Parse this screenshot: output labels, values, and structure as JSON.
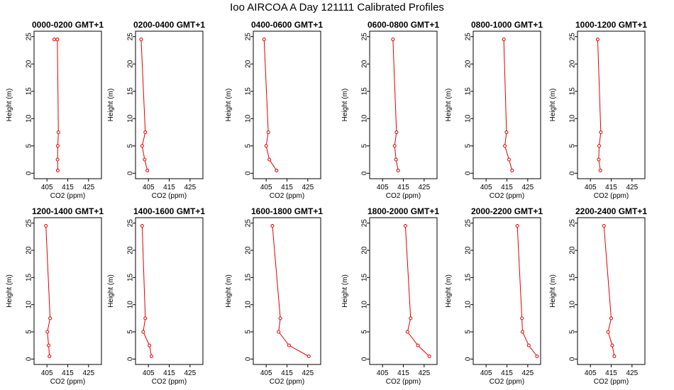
{
  "title": "Ioo AIRCOA A  Day 121111  Calibrated Profiles",
  "chart_data": [
    {
      "type": "line",
      "title": "0000-0200 GMT+1",
      "xlabel": "CO2 (ppm)",
      "ylabel": "Height (m)",
      "xlim": [
        400,
        430
      ],
      "ylim": [
        0,
        25
      ],
      "xticks": [
        405,
        415,
        425
      ],
      "yticks": [
        0,
        5,
        10,
        15,
        20,
        25
      ],
      "grid": false,
      "line_color": "#e00000",
      "series": [
        {
          "x": [
            410.2,
            410.1,
            410.2,
            410.5,
            410.0,
            408.5
          ],
          "y": [
            0.5,
            2.5,
            5,
            7.5,
            24.5,
            24.5
          ]
        }
      ]
    },
    {
      "type": "line",
      "title": "0200-0400 GMT+1",
      "xlabel": "CO2 (ppm)",
      "ylabel": "Height (m)",
      "xlim": [
        400,
        430
      ],
      "ylim": [
        0,
        25
      ],
      "xticks": [
        405,
        415,
        425
      ],
      "yticks": [
        0,
        5,
        10,
        15,
        20,
        25
      ],
      "grid": false,
      "line_color": "#e00000",
      "series": [
        {
          "x": [
            404.5,
            403.2,
            402.0,
            403.5,
            401.5
          ],
          "y": [
            0.5,
            2.5,
            5,
            7.5,
            24.5
          ]
        }
      ]
    },
    {
      "type": "line",
      "title": "0400-0600 GMT+1",
      "xlabel": "CO2 (ppm)",
      "ylabel": "Height (m)",
      "xlim": [
        400,
        430
      ],
      "ylim": [
        0,
        25
      ],
      "xticks": [
        405,
        415,
        425
      ],
      "yticks": [
        0,
        5,
        10,
        15,
        20,
        25
      ],
      "grid": false,
      "line_color": "#e00000",
      "series": [
        {
          "x": [
            410.0,
            406.5,
            405.0,
            406.0,
            404.0
          ],
          "y": [
            0.5,
            2.5,
            5,
            7.5,
            24.5
          ]
        }
      ]
    },
    {
      "type": "line",
      "title": "0600-0800 GMT+1",
      "xlabel": "CO2 (ppm)",
      "ylabel": "Height (m)",
      "xlim": [
        400,
        430
      ],
      "ylim": [
        0,
        25
      ],
      "xticks": [
        405,
        415,
        425
      ],
      "yticks": [
        0,
        5,
        10,
        15,
        20,
        25
      ],
      "grid": false,
      "line_color": "#e00000",
      "series": [
        {
          "x": [
            412.5,
            411.5,
            410.8,
            411.7,
            410.0
          ],
          "y": [
            0.5,
            2.5,
            5,
            7.5,
            24.5
          ]
        }
      ]
    },
    {
      "type": "line",
      "title": "0800-1000 GMT+1",
      "xlabel": "CO2 (ppm)",
      "ylabel": "Height (m)",
      "xlim": [
        400,
        430
      ],
      "ylim": [
        0,
        25
      ],
      "xticks": [
        405,
        415,
        425
      ],
      "yticks": [
        0,
        5,
        10,
        15,
        20,
        25
      ],
      "grid": false,
      "line_color": "#e00000",
      "series": [
        {
          "x": [
            417.5,
            416.0,
            414.0,
            414.8,
            413.5
          ],
          "y": [
            0.5,
            2.5,
            5,
            7.5,
            24.5
          ]
        }
      ]
    },
    {
      "type": "line",
      "title": "1000-1200 GMT+1",
      "xlabel": "CO2 (ppm)",
      "ylabel": "Height (m)",
      "xlim": [
        400,
        430
      ],
      "ylim": [
        0,
        25
      ],
      "xticks": [
        405,
        415,
        425
      ],
      "yticks": [
        0,
        5,
        10,
        15,
        20,
        25
      ],
      "grid": false,
      "line_color": "#e00000",
      "series": [
        {
          "x": [
            409.8,
            409.0,
            409.2,
            410.0,
            408.5
          ],
          "y": [
            0.5,
            2.5,
            5,
            7.5,
            24.5
          ]
        }
      ]
    },
    {
      "type": "line",
      "title": "1200-1400 GMT+1",
      "xlabel": "CO2 (ppm)",
      "ylabel": "Height (m)",
      "xlim": [
        400,
        430
      ],
      "ylim": [
        0,
        25
      ],
      "xticks": [
        405,
        415,
        425
      ],
      "yticks": [
        0,
        5,
        10,
        15,
        20,
        25
      ],
      "grid": false,
      "line_color": "#e00000",
      "series": [
        {
          "x": [
            406.2,
            405.8,
            405.2,
            406.5,
            404.5
          ],
          "y": [
            0.5,
            2.5,
            5,
            7.5,
            24.5
          ]
        }
      ]
    },
    {
      "type": "line",
      "title": "1400-1600 GMT+1",
      "xlabel": "CO2 (ppm)",
      "ylabel": "Height (m)",
      "xlim": [
        400,
        430
      ],
      "ylim": [
        0,
        25
      ],
      "xticks": [
        405,
        415,
        425
      ],
      "yticks": [
        0,
        5,
        10,
        15,
        20,
        25
      ],
      "grid": false,
      "line_color": "#e00000",
      "series": [
        {
          "x": [
            406.5,
            405.5,
            402.5,
            403.5,
            402.0
          ],
          "y": [
            0.5,
            2.5,
            5,
            7.5,
            24.5
          ]
        }
      ]
    },
    {
      "type": "line",
      "title": "1600-1800 GMT+1",
      "xlabel": "CO2 (ppm)",
      "ylabel": "Height (m)",
      "xlim": [
        400,
        430
      ],
      "ylim": [
        0,
        25
      ],
      "xticks": [
        405,
        415,
        425
      ],
      "yticks": [
        0,
        5,
        10,
        15,
        20,
        25
      ],
      "grid": false,
      "line_color": "#e00000",
      "series": [
        {
          "x": [
            425.5,
            416.0,
            411.0,
            411.8,
            408.0
          ],
          "y": [
            0.5,
            2.5,
            5,
            7.5,
            24.5
          ]
        }
      ]
    },
    {
      "type": "line",
      "title": "1800-2000 GMT+1",
      "xlabel": "CO2 (ppm)",
      "ylabel": "Height (m)",
      "xlim": [
        400,
        430
      ],
      "ylim": [
        0,
        25
      ],
      "xticks": [
        405,
        415,
        425
      ],
      "yticks": [
        0,
        5,
        10,
        15,
        20,
        25
      ],
      "grid": false,
      "line_color": "#e00000",
      "series": [
        {
          "x": [
            427.5,
            422.0,
            417.0,
            418.5,
            416.0
          ],
          "y": [
            0.5,
            2.5,
            5,
            7.5,
            24.5
          ]
        }
      ]
    },
    {
      "type": "line",
      "title": "2000-2200 GMT+1",
      "xlabel": "CO2 (ppm)",
      "ylabel": "Height (m)",
      "xlim": [
        400,
        430
      ],
      "ylim": [
        0,
        25
      ],
      "xticks": [
        405,
        415,
        425
      ],
      "yticks": [
        0,
        5,
        10,
        15,
        20,
        25
      ],
      "grid": false,
      "line_color": "#e00000",
      "series": [
        {
          "x": [
            429.5,
            425.5,
            422.5,
            422.2,
            420.0
          ],
          "y": [
            0.5,
            2.5,
            5,
            7.5,
            24.5
          ]
        }
      ]
    },
    {
      "type": "line",
      "title": "2200-2400 GMT+1",
      "xlabel": "CO2 (ppm)",
      "ylabel": "Height (m)",
      "xlim": [
        400,
        430
      ],
      "ylim": [
        0,
        25
      ],
      "xticks": [
        405,
        415,
        425
      ],
      "yticks": [
        0,
        5,
        10,
        15,
        20,
        25
      ],
      "grid": false,
      "line_color": "#e00000",
      "series": [
        {
          "x": [
            416.5,
            415.5,
            413.5,
            415.0,
            411.5
          ],
          "y": [
            0.5,
            2.5,
            5,
            7.5,
            24.5
          ]
        }
      ]
    }
  ]
}
